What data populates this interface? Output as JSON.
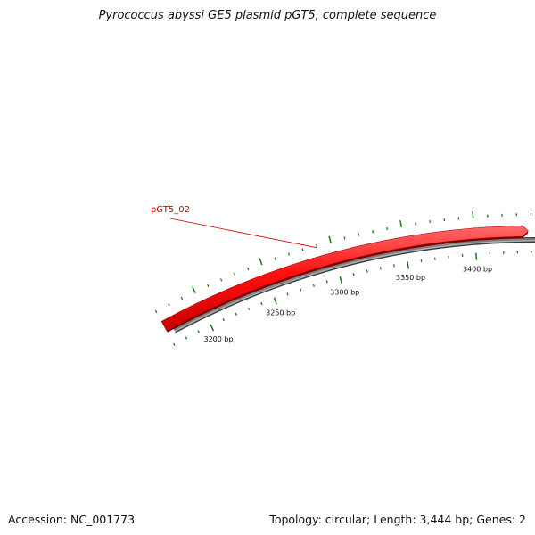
{
  "title": "Pyrococcus abyssi GE5 plasmid pGT5, complete sequence",
  "footer": {
    "accession": "Accession: NC_001773",
    "summary": "Topology: circular; Length: 3,444 bp; Genes: 2"
  },
  "plasmid": {
    "length_bp": 3444,
    "visible_range_bp": [
      3180,
      3444
    ],
    "backbone_color": "#808080",
    "tick_color": "#1a7a1a",
    "tick_labels": [
      {
        "bp": 3200,
        "text": "3200 bp"
      },
      {
        "bp": 3250,
        "text": "3250 bp"
      },
      {
        "bp": 3300,
        "text": "3300 bp"
      },
      {
        "bp": 3350,
        "text": "3350 bp"
      },
      {
        "bp": 3400,
        "text": "3400 bp"
      }
    ]
  },
  "genes": [
    {
      "name": "pGT5_02",
      "strand": "+",
      "color": "#ee0000",
      "label_color": "#d40000"
    }
  ]
}
